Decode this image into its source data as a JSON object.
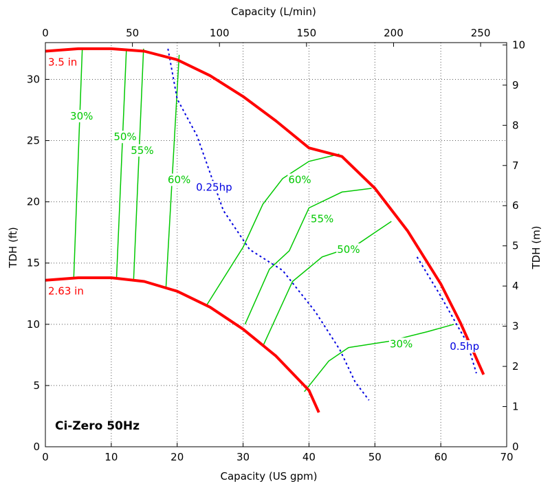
{
  "chart_data": {
    "type": "line",
    "title": "Ci-Zero 50Hz",
    "axes": {
      "x_bottom": {
        "label": "Capacity (US gpm)",
        "range": [
          0,
          70
        ],
        "ticks": [
          0,
          10,
          20,
          30,
          40,
          50,
          60,
          70
        ]
      },
      "x_top": {
        "label": "Capacity (L/min)",
        "range": [
          0,
          264.98
        ],
        "ticks": [
          0,
          50,
          100,
          150,
          200,
          250
        ]
      },
      "y_left": {
        "label": "TDH (ft)",
        "range": [
          0,
          33
        ],
        "ticks": [
          0,
          5,
          10,
          15,
          20,
          25,
          30
        ]
      },
      "y_right": {
        "label": "TDH (m)",
        "range": [
          0,
          10.058
        ],
        "ticks": [
          0,
          1,
          2,
          3,
          4,
          5,
          6,
          7,
          8,
          9,
          10
        ]
      }
    },
    "grid": true,
    "colors": {
      "impeller": "#ff0000",
      "efficiency": "#00c800",
      "power": "#0000e0"
    },
    "impeller_curves": [
      {
        "label": "3.5 in",
        "points": [
          [
            0,
            32.3
          ],
          [
            5,
            32.5
          ],
          [
            10,
            32.5
          ],
          [
            15,
            32.3
          ],
          [
            20,
            31.6
          ],
          [
            25,
            30.3
          ],
          [
            30,
            28.6
          ],
          [
            35,
            26.6
          ],
          [
            40,
            24.4
          ],
          [
            45,
            23.7
          ],
          [
            50,
            21.1
          ],
          [
            55,
            17.6
          ],
          [
            60,
            13.3
          ],
          [
            63,
            10.1
          ],
          [
            66.5,
            5.9
          ]
        ]
      },
      {
        "label": "2.63 in",
        "points": [
          [
            0,
            13.6
          ],
          [
            5,
            13.8
          ],
          [
            10,
            13.8
          ],
          [
            15,
            13.5
          ],
          [
            20,
            12.7
          ],
          [
            25,
            11.4
          ],
          [
            30,
            9.6
          ],
          [
            35,
            7.4
          ],
          [
            40,
            4.6
          ],
          [
            41.5,
            2.8
          ]
        ]
      }
    ],
    "efficiency_curves": [
      {
        "label": "30%",
        "label_at": [
          5.5,
          27
        ],
        "points": [
          [
            5.6,
            32.5
          ],
          [
            4.3,
            13.7
          ]
        ]
      },
      {
        "label": "50%",
        "label_at": [
          12.1,
          25.3
        ],
        "points": [
          [
            12.3,
            32.5
          ],
          [
            10.8,
            13.8
          ]
        ]
      },
      {
        "label": "55%",
        "label_at": [
          14.7,
          24.2
        ],
        "points": [
          [
            14.9,
            32.5
          ],
          [
            13.4,
            13.7
          ]
        ]
      },
      {
        "label": "60%",
        "label_at": [
          20.3,
          21.8
        ],
        "points": [
          [
            20.3,
            32.0
          ],
          [
            18.3,
            13.0
          ]
        ]
      },
      {
        "label": "60%",
        "label_at": [
          38.6,
          21.8
        ],
        "points": [
          [
            24.4,
            11.5
          ],
          [
            30,
            16.3
          ],
          [
            33,
            19.8
          ],
          [
            36,
            21.9
          ],
          [
            40,
            23.3
          ],
          [
            44.6,
            23.9
          ]
        ]
      },
      {
        "label": "55%",
        "label_at": [
          42,
          18.6
        ],
        "points": [
          [
            30.3,
            10.0
          ],
          [
            34,
            14.5
          ],
          [
            37,
            16.0
          ],
          [
            40,
            19.5
          ],
          [
            45,
            20.8
          ],
          [
            49.5,
            21.1
          ]
        ]
      },
      {
        "label": "50%",
        "label_at": [
          46,
          16.1
        ],
        "points": [
          [
            33,
            8.2
          ],
          [
            37.5,
            13.5
          ],
          [
            42,
            15.5
          ],
          [
            47,
            16.4
          ],
          [
            50,
            17.5
          ],
          [
            52.5,
            18.4
          ]
        ]
      },
      {
        "label": "30%",
        "label_at": [
          54,
          8.4
        ],
        "points": [
          [
            39.3,
            4.5
          ],
          [
            43,
            7.0
          ],
          [
            46,
            8.1
          ],
          [
            52,
            8.6
          ],
          [
            58,
            9.4
          ],
          [
            62,
            10.0
          ]
        ]
      }
    ],
    "power_curves": [
      {
        "label": "0.25hp",
        "label_at": [
          25.6,
          21.2
        ],
        "points": [
          [
            18.6,
            32.5
          ],
          [
            20,
            28.4
          ],
          [
            23,
            25.4
          ],
          [
            27,
            19.3
          ],
          [
            31,
            16.1
          ],
          [
            36,
            14.4
          ],
          [
            41,
            11.0
          ],
          [
            44.7,
            7.9
          ],
          [
            47,
            5.3
          ],
          [
            49.1,
            3.8
          ]
        ]
      },
      {
        "label": "0.5hp",
        "label_at": [
          63.6,
          8.2
        ],
        "points": [
          [
            56.4,
            15.5
          ],
          [
            60,
            12.3
          ],
          [
            62.5,
            9.9
          ],
          [
            64,
            8.5
          ],
          [
            65.4,
            6.0
          ]
        ]
      }
    ]
  }
}
